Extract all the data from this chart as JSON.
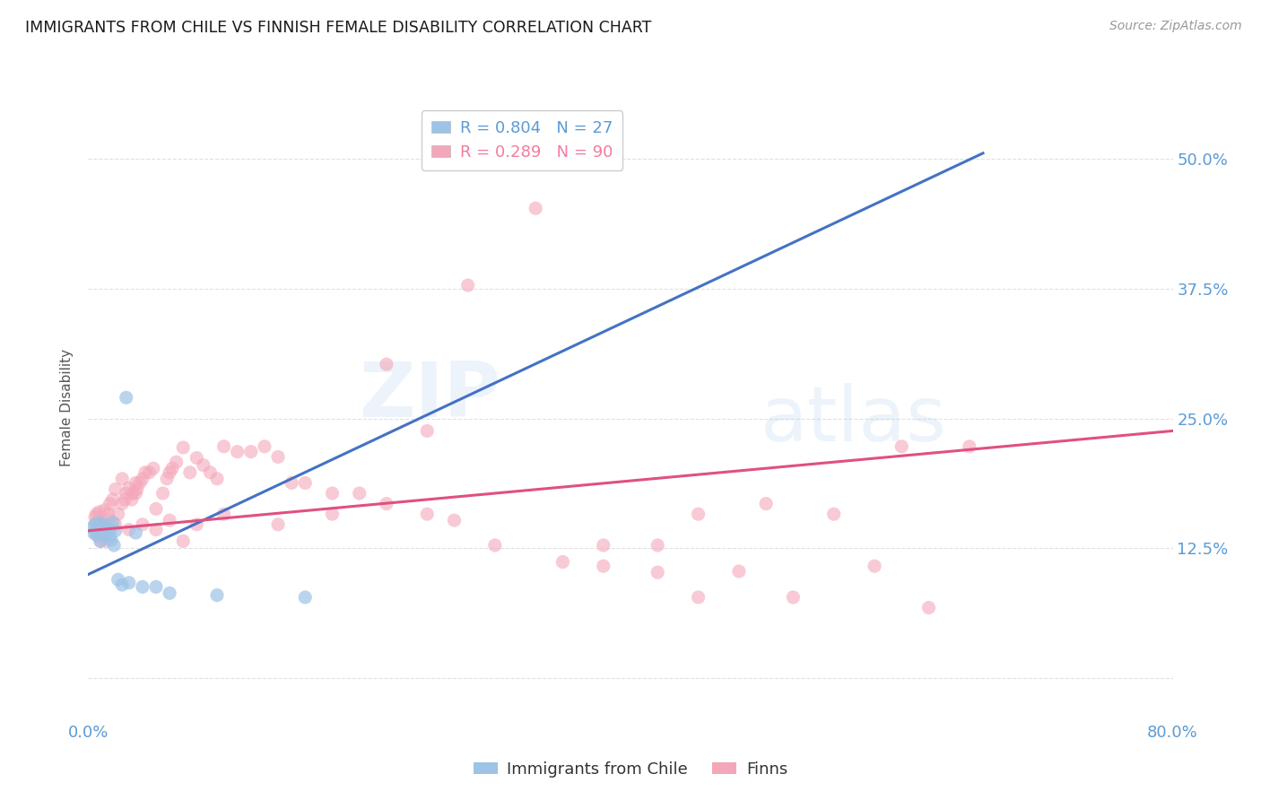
{
  "title": "IMMIGRANTS FROM CHILE VS FINNISH FEMALE DISABILITY CORRELATION CHART",
  "source": "Source: ZipAtlas.com",
  "ylabel": "Female Disability",
  "yticks": [
    0.0,
    0.125,
    0.25,
    0.375,
    0.5
  ],
  "ytick_labels": [
    "",
    "12.5%",
    "25.0%",
    "37.5%",
    "50.0%"
  ],
  "xlim": [
    0.0,
    0.8
  ],
  "ylim": [
    -0.04,
    0.56
  ],
  "legend_entries": [
    {
      "label": "R = 0.804   N = 27",
      "color": "#5b9bd5"
    },
    {
      "label": "R = 0.289   N = 90",
      "color": "#f47c9e"
    }
  ],
  "watermark_zip": "ZIP",
  "watermark_atlas": "atlas",
  "chile_scatter_x": [
    0.003,
    0.004,
    0.005,
    0.006,
    0.007,
    0.008,
    0.009,
    0.01,
    0.011,
    0.012,
    0.013,
    0.015,
    0.016,
    0.017,
    0.018,
    0.019,
    0.02,
    0.022,
    0.025,
    0.028,
    0.03,
    0.035,
    0.04,
    0.05,
    0.06,
    0.095,
    0.16
  ],
  "chile_scatter_y": [
    0.145,
    0.14,
    0.148,
    0.138,
    0.142,
    0.15,
    0.132,
    0.143,
    0.138,
    0.148,
    0.137,
    0.143,
    0.138,
    0.133,
    0.15,
    0.128,
    0.142,
    0.095,
    0.09,
    0.27,
    0.092,
    0.14,
    0.088,
    0.088,
    0.082,
    0.08,
    0.078
  ],
  "finn_scatter_x": [
    0.005,
    0.006,
    0.007,
    0.008,
    0.009,
    0.01,
    0.011,
    0.012,
    0.013,
    0.015,
    0.016,
    0.018,
    0.02,
    0.022,
    0.025,
    0.027,
    0.028,
    0.03,
    0.032,
    0.033,
    0.035,
    0.036,
    0.038,
    0.04,
    0.042,
    0.045,
    0.048,
    0.05,
    0.055,
    0.058,
    0.06,
    0.062,
    0.065,
    0.07,
    0.075,
    0.08,
    0.085,
    0.09,
    0.095,
    0.1,
    0.11,
    0.12,
    0.13,
    0.14,
    0.15,
    0.16,
    0.18,
    0.2,
    0.22,
    0.25,
    0.27,
    0.3,
    0.35,
    0.38,
    0.42,
    0.45,
    0.5,
    0.55,
    0.6,
    0.65,
    0.22,
    0.28,
    0.33,
    0.18,
    0.14,
    0.1,
    0.08,
    0.07,
    0.06,
    0.05,
    0.04,
    0.035,
    0.03,
    0.025,
    0.02,
    0.015,
    0.012,
    0.01,
    0.009,
    0.008,
    0.007,
    0.006,
    0.48,
    0.52,
    0.38,
    0.42,
    0.58,
    0.62,
    0.45,
    0.25
  ],
  "finn_scatter_y": [
    0.155,
    0.15,
    0.145,
    0.16,
    0.132,
    0.142,
    0.148,
    0.162,
    0.132,
    0.152,
    0.168,
    0.172,
    0.182,
    0.158,
    0.192,
    0.172,
    0.178,
    0.183,
    0.172,
    0.178,
    0.188,
    0.182,
    0.188,
    0.192,
    0.198,
    0.198,
    0.202,
    0.163,
    0.178,
    0.192,
    0.198,
    0.202,
    0.208,
    0.222,
    0.198,
    0.212,
    0.205,
    0.198,
    0.192,
    0.223,
    0.218,
    0.218,
    0.223,
    0.213,
    0.188,
    0.188,
    0.178,
    0.178,
    0.168,
    0.158,
    0.152,
    0.128,
    0.112,
    0.108,
    0.102,
    0.078,
    0.168,
    0.158,
    0.223,
    0.223,
    0.302,
    0.378,
    0.452,
    0.158,
    0.148,
    0.158,
    0.148,
    0.132,
    0.152,
    0.143,
    0.148,
    0.178,
    0.143,
    0.168,
    0.148,
    0.158,
    0.148,
    0.138,
    0.143,
    0.148,
    0.138,
    0.158,
    0.103,
    0.078,
    0.128,
    0.128,
    0.108,
    0.068,
    0.158,
    0.238
  ],
  "chile_color": "#9dc3e6",
  "finn_color": "#f4a7b9",
  "chile_line_color": "#4472c4",
  "finn_line_color": "#e05080",
  "background_color": "#ffffff",
  "grid_color": "#d9d9d9",
  "chile_line_x0": 0.0,
  "chile_line_y0": 0.1,
  "chile_line_x1": 0.66,
  "chile_line_y1": 0.505,
  "finn_line_x0": 0.0,
  "finn_line_y0": 0.142,
  "finn_line_x1": 0.8,
  "finn_line_y1": 0.238
}
